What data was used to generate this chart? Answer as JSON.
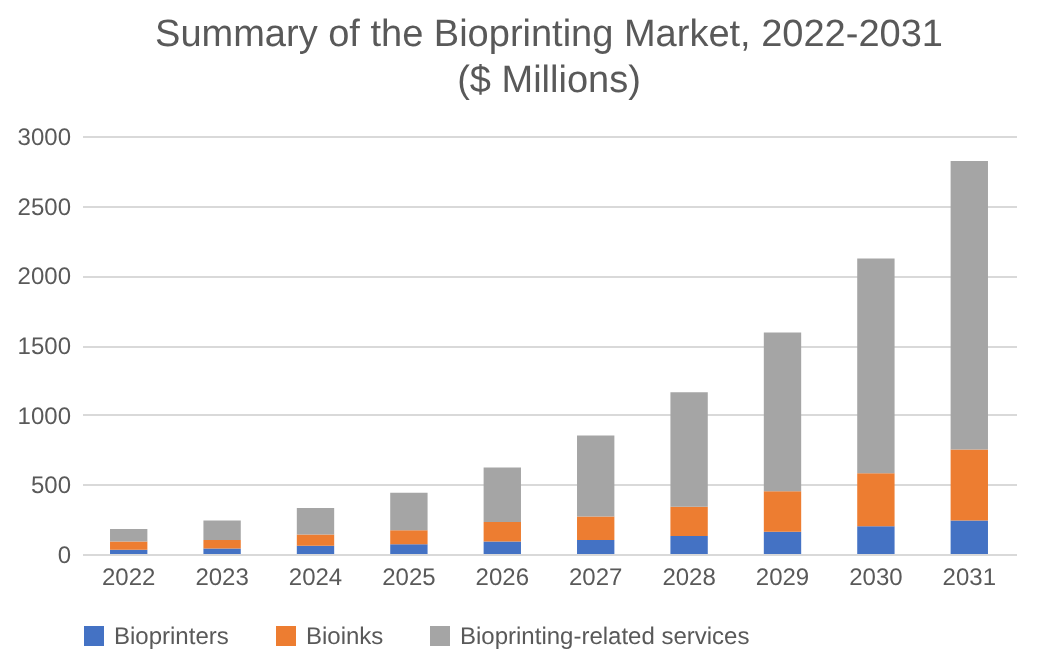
{
  "chart_data": {
    "type": "bar",
    "title": "Summary of the Bioprinting Market, 2022-2031",
    "subtitle": "($ Millions)",
    "categories": [
      "2022",
      "2023",
      "2024",
      "2025",
      "2026",
      "2027",
      "2028",
      "2029",
      "2030",
      "2031"
    ],
    "stacked": true,
    "series": [
      {
        "name": "Bioprinters",
        "color": "#4472c4",
        "values": [
          30,
          40,
          60,
          70,
          90,
          100,
          130,
          160,
          200,
          240
        ]
      },
      {
        "name": "Bioinks",
        "color": "#ed7d31",
        "values": [
          60,
          60,
          80,
          100,
          140,
          170,
          210,
          290,
          380,
          510
        ]
      },
      {
        "name": "Bioprinting-related services",
        "color": "#a5a5a5",
        "values": [
          90,
          140,
          190,
          270,
          390,
          580,
          820,
          1140,
          1540,
          2070
        ]
      }
    ],
    "ylim": [
      0,
      3000
    ],
    "yticks": [
      0,
      500,
      1000,
      1500,
      2000,
      2500,
      3000
    ],
    "grid": "y",
    "legend": "bottom"
  }
}
